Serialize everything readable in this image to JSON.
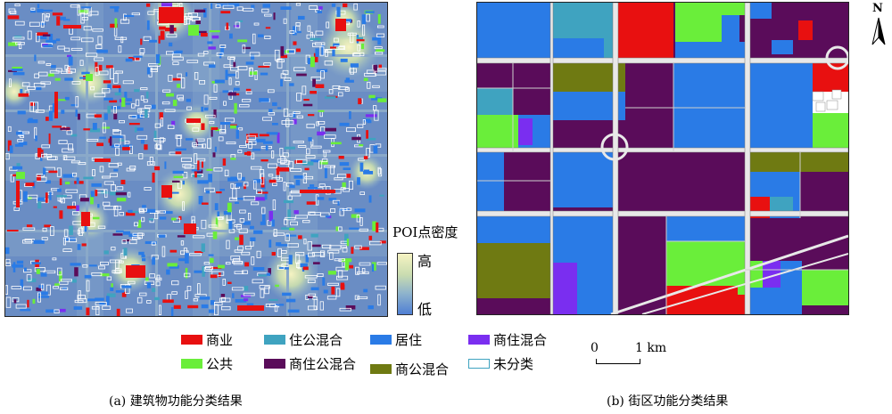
{
  "colors": {
    "commercial": "#e81010",
    "residential_office": "#3fa3c0",
    "residential": "#2a7be6",
    "commercial_residential": "#7a2ef0",
    "public": "#6aee3a",
    "commercial_residential_office": "#5a0c5a",
    "commercial_office": "#6f7a12",
    "unclassified": "#ffffff",
    "road": "#d0d0d0",
    "density_high": "#f6f3c2",
    "density_low": "#4f7fd4"
  },
  "density_legend": {
    "title": "POI点密度",
    "high": "高",
    "low": "低"
  },
  "north_arrow": {
    "label": "N",
    "icon": "north-arrow-icon"
  },
  "legend": [
    {
      "key": "commercial",
      "label": "商业"
    },
    {
      "key": "residential_office",
      "label": "住公混合"
    },
    {
      "key": "residential",
      "label": "居住"
    },
    {
      "key": "commercial_residential",
      "label": "商住混合"
    },
    {
      "key": "public",
      "label": "公共"
    },
    {
      "key": "commercial_residential_office",
      "label": "商住公混合"
    },
    {
      "key": "commercial_office",
      "label": "商公混合"
    },
    {
      "key": "unclassified",
      "label": "未分类"
    }
  ],
  "scale_bar": {
    "start": "0",
    "end": "1 km"
  },
  "captions": {
    "a": "(a) 建筑物功能分类结果",
    "b": "(b) 街区功能分类结果"
  }
}
